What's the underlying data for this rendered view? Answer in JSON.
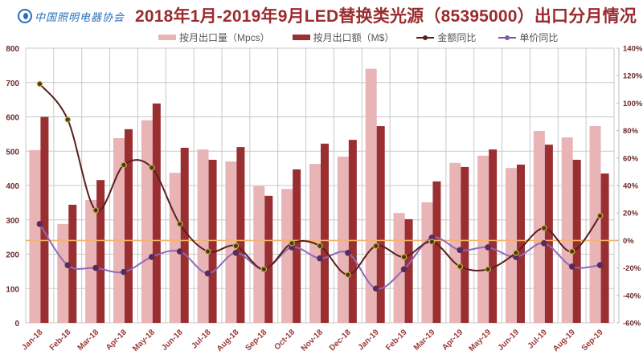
{
  "header": {
    "logo_text": "中国照明电器协会",
    "title": "2018年1月-2019年9月LED替换类光源（85395000）出口分月情况"
  },
  "legend": [
    {
      "label": "按月出口量（Mpcs）",
      "type": "bar",
      "color": "#e8b4b6"
    },
    {
      "label": "按月出口额（M$）",
      "type": "bar",
      "color": "#9a2f31"
    },
    {
      "label": "金额同比",
      "type": "line",
      "color": "#5a1f1f"
    },
    {
      "label": "单价同比",
      "type": "line",
      "color": "#7a5aa6"
    }
  ],
  "colors": {
    "volume_bar": "#e8b4b6",
    "amount_bar": "#9a2f31",
    "amount_yoy_line": "#5a1f1f",
    "amount_yoy_marker": "#4a3a10",
    "amount_yoy_marker_stroke": "#c9b24a",
    "price_yoy_line": "#8b6bb8",
    "price_yoy_marker": "#5a2a5a",
    "zero_line": "#f4b26a",
    "axis_text": "#6b2a2a",
    "xtick_text": "#9a3a3a",
    "grid": "#c8c8c8"
  },
  "chart_data": {
    "type": "bar",
    "title": "2018年1月-2019年9月LED替换类光源（85395000）出口分月情况",
    "xlabel": "",
    "ylabel": "",
    "ylim": [
      0,
      800
    ],
    "yticks": [
      0,
      100,
      200,
      300,
      400,
      500,
      600,
      700,
      800
    ],
    "y2lim": [
      -60,
      140
    ],
    "y2ticks": [
      "-60%",
      "-40%",
      "-20%",
      "0%",
      "20%",
      "40%",
      "60%",
      "80%",
      "100%",
      "120%",
      "140%"
    ],
    "grid": true,
    "legend_position": "top",
    "categories": [
      "Jan-18",
      "Feb-18",
      "Mar-18",
      "Apr-18",
      "May-18",
      "Jun-18",
      "Jul-18",
      "Aug-18",
      "Sep-18",
      "Oct-18",
      "Nov-18",
      "Dec-18",
      "Jan-19",
      "Feb-19",
      "Mar-19",
      "Apr-19",
      "May-19",
      "Jun-19",
      "Jul-19",
      "Aug-19",
      "Sep-19"
    ],
    "series": [
      {
        "name": "按月出口量（Mpcs）",
        "type": "bar",
        "axis": "left",
        "values": [
          503,
          288,
          358,
          538,
          590,
          437,
          505,
          470,
          398,
          390,
          463,
          484,
          740,
          320,
          351,
          466,
          487,
          451,
          559,
          540,
          573
        ]
      },
      {
        "name": "按月出口额（M$）",
        "type": "bar",
        "axis": "left",
        "values": [
          600,
          344,
          416,
          564,
          639,
          510,
          475,
          512,
          370,
          447,
          522,
          533,
          573,
          302,
          412,
          454,
          505,
          461,
          519,
          475,
          435
        ]
      },
      {
        "name": "金额同比",
        "type": "line",
        "axis": "right",
        "unit": "%",
        "values": [
          114,
          88,
          22,
          55,
          53,
          12,
          -8,
          -4,
          -21,
          -2,
          -4,
          -25,
          -4,
          -12,
          -1,
          -19,
          -21,
          -9,
          9,
          -8,
          18
        ]
      },
      {
        "name": "单价同比",
        "type": "line",
        "axis": "right",
        "unit": "%",
        "values": [
          12,
          -18,
          -20,
          -23,
          -12,
          -8,
          -24,
          -9,
          -21,
          -5,
          -13,
          -9,
          -35,
          -21,
          2,
          -7,
          -5,
          -12,
          -2,
          -19,
          -18
        ]
      }
    ]
  }
}
